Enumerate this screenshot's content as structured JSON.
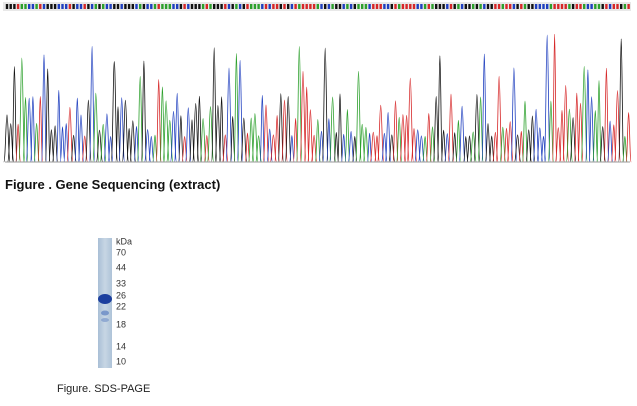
{
  "figures": [
    {
      "caption": "Figure . Gene Sequencing (extract)"
    },
    {
      "caption": "Figure. SDS-PAGE",
      "unit": "kDa",
      "markers": [
        70,
        44,
        33,
        26,
        22,
        18,
        14,
        10
      ]
    }
  ]
}
